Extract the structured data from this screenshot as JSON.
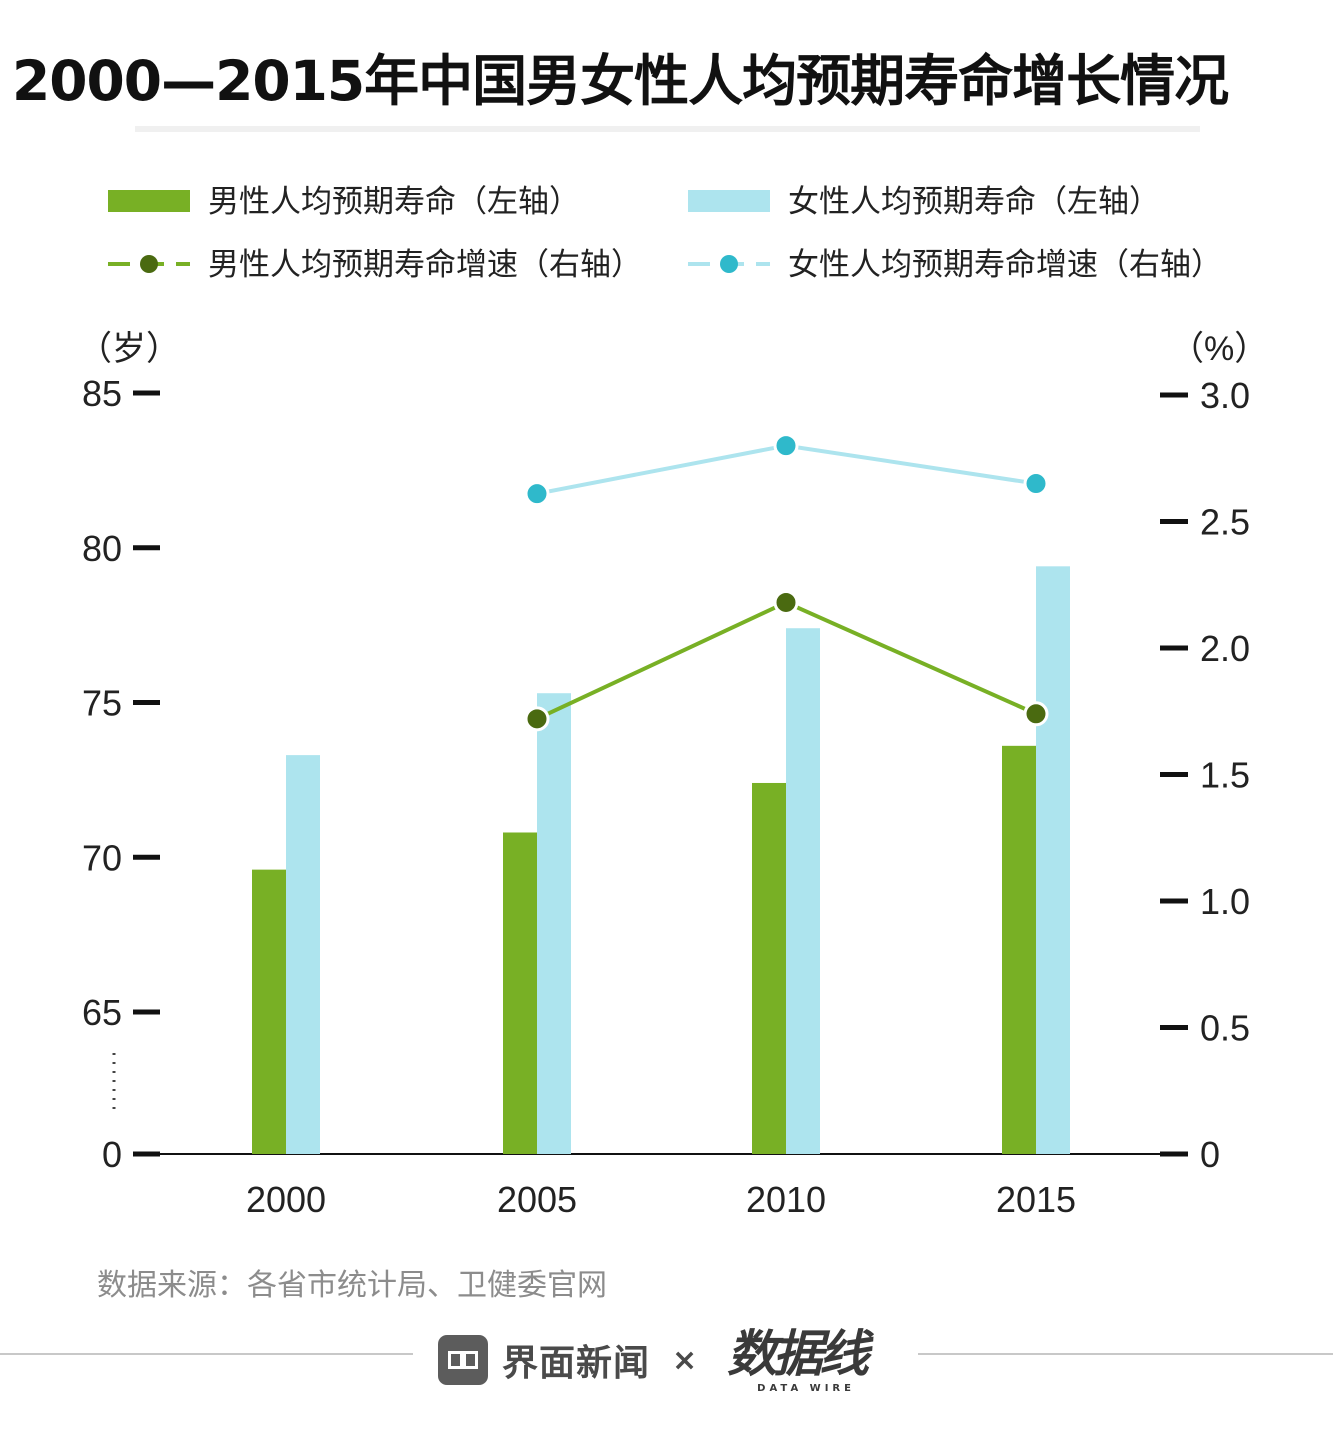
{
  "title": "2000—2015年中国男女性人均预期寿命增长情况",
  "source": "数据来源：各省市统计局、卫健委官网",
  "footer": {
    "brand": "界面新闻",
    "times": "×",
    "logo_cn": "数据线",
    "logo_en": "DATA WIRE"
  },
  "colors": {
    "male_bar": "#78b025",
    "female_bar": "#ade4ee",
    "male_line": "#78b025",
    "male_point": "#4a6a10",
    "female_line": "#ade4ee",
    "female_point": "#2fb9cb",
    "axis": "#111111"
  },
  "chart_data": {
    "type": "bar",
    "categories": [
      "2000",
      "2005",
      "2010",
      "2015"
    ],
    "left_axis": {
      "unit": "（岁）",
      "ticks": [
        "85",
        "80",
        "75",
        "70",
        "65",
        "0"
      ],
      "tick_values": [
        85,
        80,
        75,
        70,
        65,
        0
      ],
      "broken_axis": true,
      "break_range": [
        0,
        65
      ]
    },
    "right_axis": {
      "unit": "（%）",
      "ticks": [
        "3.0",
        "2.5",
        "2.0",
        "1.5",
        "1.0",
        "0.5",
        "0"
      ],
      "tick_values": [
        3.0,
        2.5,
        2.0,
        1.5,
        1.0,
        0.5,
        0
      ],
      "ylim": [
        0,
        3.0
      ]
    },
    "series": [
      {
        "name": "男性人均预期寿命（左轴）",
        "kind": "bar",
        "axis": "left",
        "values": [
          69.6,
          70.8,
          72.4,
          73.6
        ]
      },
      {
        "name": "女性人均预期寿命（左轴）",
        "kind": "bar",
        "axis": "left",
        "values": [
          73.3,
          75.3,
          77.4,
          79.4
        ]
      },
      {
        "name": "男性人均预期寿命增速（右轴）",
        "kind": "line",
        "axis": "right",
        "values": [
          null,
          1.72,
          2.18,
          1.74
        ]
      },
      {
        "name": "女性人均预期寿命增速（右轴）",
        "kind": "line",
        "axis": "right",
        "values": [
          null,
          2.61,
          2.8,
          2.65
        ]
      }
    ],
    "grid": false,
    "legend_position": "top"
  }
}
